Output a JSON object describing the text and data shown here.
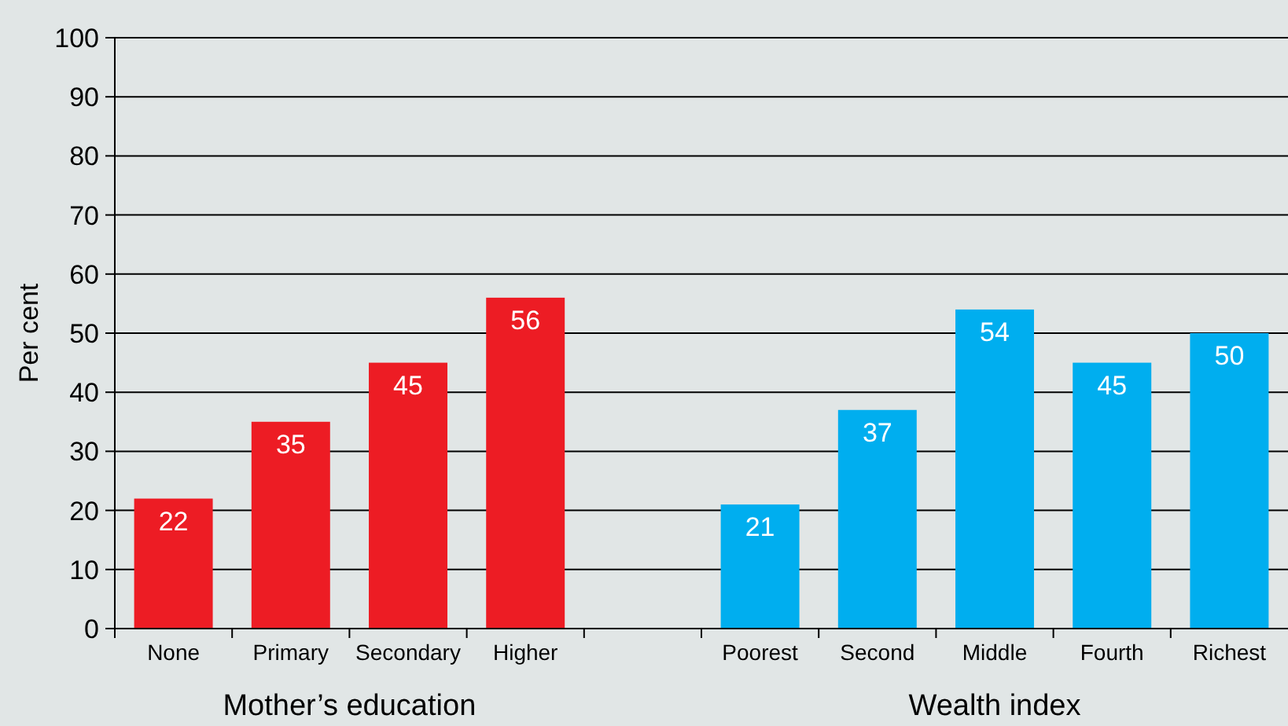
{
  "chart_data": {
    "type": "bar",
    "ylabel": "Per cent",
    "categories": [
      "None",
      "Primary",
      "Secondary",
      "Higher",
      null,
      "Poorest",
      "Second",
      "Middle",
      "Fourth",
      "Richest"
    ],
    "series": [
      {
        "color": "#ed1c24",
        "values": [
          22,
          35,
          45,
          56,
          null,
          null,
          null,
          null,
          null,
          null
        ]
      },
      {
        "color": "#00aeef",
        "values": [
          null,
          null,
          null,
          null,
          null,
          21,
          37,
          54,
          45,
          50
        ]
      }
    ],
    "ylim": [
      0,
      100
    ],
    "yticks": [
      0,
      10,
      20,
      30,
      40,
      50,
      60,
      70,
      80,
      90,
      100
    ],
    "grid": "y",
    "data_labels": true,
    "annotations": [
      "Mother’s education",
      "Wealth index"
    ]
  }
}
